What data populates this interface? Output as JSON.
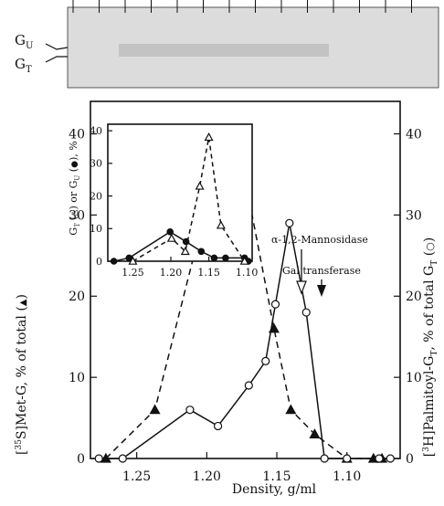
{
  "gel": {
    "labels": [
      "G",
      "U",
      "G",
      "T"
    ]
  },
  "chart_data": [
    {
      "type": "line",
      "xlabel": "Density, g/ml",
      "ylabel_left": [
        "[",
        "35",
        "S]Met-G, % of total (",
        ")"
      ],
      "ylabel_right": [
        "[",
        "3",
        "H]Palmitoyl-G",
        "T",
        ", % of total G",
        "T",
        " (",
        ")"
      ],
      "x_ticks": [
        "1.25",
        "1.20",
        "1.15",
        "1.10"
      ],
      "y_ticks_left": [
        "0",
        "10",
        "20",
        "30",
        "40"
      ],
      "y_ticks_right": [
        "0",
        "10",
        "20",
        "30",
        "40"
      ],
      "xlim": [
        1.283,
        1.062
      ],
      "ylim": [
        0,
        44
      ],
      "series": [
        {
          "marker": "filled-triangle",
          "style": "dashed",
          "x": [
            1.272,
            1.237,
            1.196,
            1.171,
            1.152,
            1.14,
            1.123,
            1.1,
            1.081,
            1.075
          ],
          "y": [
            0,
            6,
            34,
            33,
            16,
            6,
            3,
            0,
            0,
            0
          ]
        },
        {
          "marker": "open-circle",
          "style": "solid",
          "x": [
            1.277,
            1.26,
            1.212,
            1.192,
            1.17,
            1.158,
            1.151,
            1.141,
            1.129,
            1.116,
            1.1,
            1.077,
            1.069
          ],
          "y": [
            0,
            0,
            6,
            4,
            9,
            12,
            19,
            29,
            18,
            0,
            0,
            0,
            0
          ]
        }
      ],
      "annotations": [
        {
          "text": "α-1,2-Mannosidase",
          "x": 1.129
        },
        {
          "text": "Gal transferase",
          "x": 1.112
        }
      ]
    },
    {
      "type": "line",
      "ylabel": [
        "G",
        "T",
        " (",
        ") or G",
        "U",
        " (",
        "), %"
      ],
      "x_ticks": [
        "1.25",
        "1.20",
        "1.15",
        "1.10"
      ],
      "y_ticks": [
        "0",
        "10",
        "20",
        "30",
        "40"
      ],
      "xlim": [
        1.283,
        1.093
      ],
      "ylim": [
        0,
        42
      ],
      "series": [
        {
          "marker": "filled-circle",
          "style": "solid",
          "x": [
            1.275,
            1.255,
            1.201,
            1.18,
            1.16,
            1.143,
            1.128,
            1.103,
            1.098
          ],
          "y": [
            0,
            1,
            9,
            6,
            3,
            1,
            1,
            1,
            0
          ]
        },
        {
          "marker": "open-triangle",
          "style": "dashed",
          "x": [
            1.25,
            1.199,
            1.181,
            1.162,
            1.15,
            1.134,
            1.103
          ],
          "y": [
            0,
            7,
            3,
            23,
            38,
            11,
            0
          ]
        }
      ]
    }
  ]
}
